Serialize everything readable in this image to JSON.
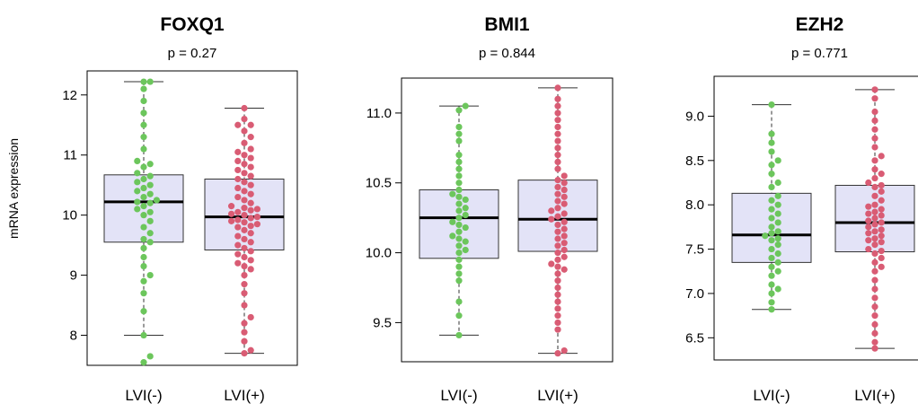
{
  "ylabel_text": "mRNA expression",
  "colors": {
    "box_fill": "#e3e3f7",
    "box_stroke": "#333333",
    "median": "#000000",
    "lvi_neg": "#6cc65c",
    "lvi_pos": "#d95c74"
  },
  "chart_data": [
    {
      "type": "box",
      "title": "FOXQ1",
      "subtitle": "p = 0.27",
      "ylabel": "mRNA expression",
      "ylim": [
        7.5,
        12.4
      ],
      "yticks": [
        8,
        9,
        10,
        11,
        12
      ],
      "categories": [
        "LVI(-)",
        "LVI(+)"
      ],
      "boxes": [
        {
          "name": "LVI(-)",
          "whisker_low": 8.0,
          "q1": 9.55,
          "median": 10.22,
          "q3": 10.67,
          "whisker_high": 12.22,
          "outliers": [
            7.65,
            7.55
          ]
        },
        {
          "name": "LVI(+)",
          "whisker_low": 7.7,
          "q1": 9.42,
          "median": 9.97,
          "q3": 10.6,
          "whisker_high": 11.78,
          "outliers": []
        }
      ],
      "points": [
        {
          "group": "LVI(-)",
          "values": [
            7.55,
            7.65,
            8.0,
            8.4,
            8.7,
            8.9,
            9.0,
            9.15,
            9.3,
            9.45,
            9.55,
            9.6,
            9.7,
            9.8,
            9.9,
            10.0,
            10.05,
            10.1,
            10.15,
            10.2,
            10.22,
            10.25,
            10.3,
            10.35,
            10.4,
            10.45,
            10.5,
            10.55,
            10.6,
            10.65,
            10.7,
            10.8,
            10.85,
            10.9,
            11.1,
            11.3,
            11.5,
            11.7,
            11.9,
            12.1,
            12.22,
            12.22
          ]
        },
        {
          "group": "LVI(+)",
          "values": [
            7.7,
            7.75,
            7.9,
            8.05,
            8.2,
            8.3,
            8.5,
            8.7,
            8.85,
            9.0,
            9.1,
            9.15,
            9.2,
            9.25,
            9.3,
            9.35,
            9.4,
            9.45,
            9.5,
            9.55,
            9.6,
            9.65,
            9.7,
            9.75,
            9.8,
            9.82,
            9.85,
            9.88,
            9.9,
            9.92,
            9.95,
            9.97,
            10.0,
            10.02,
            10.05,
            10.08,
            10.1,
            10.12,
            10.15,
            10.2,
            10.25,
            10.3,
            10.35,
            10.4,
            10.45,
            10.5,
            10.55,
            10.6,
            10.65,
            10.7,
            10.75,
            10.8,
            10.85,
            10.9,
            10.95,
            11.0,
            11.05,
            11.1,
            11.2,
            11.3,
            11.4,
            11.5,
            11.5,
            11.6,
            11.78
          ]
        }
      ]
    },
    {
      "type": "box",
      "title": "BMI1",
      "subtitle": "p = 0.844",
      "ylabel": "",
      "ylim": [
        9.22,
        11.25
      ],
      "yticks": [
        9.5,
        10.0,
        10.5,
        11.0
      ],
      "ytick_labels": [
        "9.5",
        "10.0",
        "10.5",
        "11.0"
      ],
      "categories": [
        "LVI(-)",
        "LVI(+)"
      ],
      "boxes": [
        {
          "name": "LVI(-)",
          "whisker_low": 9.41,
          "q1": 9.96,
          "median": 10.25,
          "q3": 10.45,
          "whisker_high": 11.05,
          "outliers": []
        },
        {
          "name": "LVI(+)",
          "whisker_low": 9.28,
          "q1": 10.01,
          "median": 10.24,
          "q3": 10.52,
          "whisker_high": 11.18,
          "outliers": []
        }
      ],
      "points": [
        {
          "group": "LVI(-)",
          "values": [
            9.41,
            9.55,
            9.65,
            9.8,
            9.85,
            9.9,
            9.95,
            10.0,
            10.02,
            10.05,
            10.08,
            10.1,
            10.12,
            10.15,
            10.18,
            10.2,
            10.22,
            10.25,
            10.27,
            10.3,
            10.32,
            10.35,
            10.38,
            10.4,
            10.42,
            10.45,
            10.5,
            10.55,
            10.6,
            10.65,
            10.7,
            10.8,
            10.85,
            10.9,
            11.02,
            11.05
          ]
        },
        {
          "group": "LVI(+)",
          "values": [
            9.28,
            9.3,
            9.45,
            9.5,
            9.55,
            9.6,
            9.65,
            9.7,
            9.75,
            9.8,
            9.85,
            9.88,
            9.9,
            9.92,
            9.95,
            9.97,
            10.0,
            10.02,
            10.05,
            10.07,
            10.1,
            10.12,
            10.15,
            10.17,
            10.2,
            10.22,
            10.24,
            10.26,
            10.28,
            10.3,
            10.32,
            10.35,
            10.37,
            10.4,
            10.42,
            10.45,
            10.47,
            10.5,
            10.52,
            10.55,
            10.6,
            10.65,
            10.7,
            10.75,
            10.8,
            10.85,
            10.9,
            10.95,
            11.0,
            11.05,
            11.1,
            11.18
          ]
        }
      ]
    },
    {
      "type": "box",
      "title": "EZH2",
      "subtitle": "p = 0.771",
      "ylabel": "",
      "ylim": [
        6.25,
        9.45
      ],
      "yticks": [
        6.5,
        7.0,
        7.5,
        8.0,
        8.5,
        9.0
      ],
      "ytick_labels": [
        "6.5",
        "7.0",
        "7.5",
        "8.0",
        "8.5",
        "9.0"
      ],
      "categories": [
        "LVI(-)",
        "LVI(+)"
      ],
      "boxes": [
        {
          "name": "LVI(-)",
          "whisker_low": 6.82,
          "q1": 7.35,
          "median": 7.66,
          "q3": 8.13,
          "whisker_high": 9.13,
          "outliers": []
        },
        {
          "name": "LVI(+)",
          "whisker_low": 6.38,
          "q1": 7.47,
          "median": 7.8,
          "q3": 8.22,
          "whisker_high": 9.3,
          "outliers": []
        }
      ],
      "points": [
        {
          "group": "LVI(-)",
          "values": [
            6.82,
            6.9,
            7.0,
            7.05,
            7.1,
            7.2,
            7.25,
            7.3,
            7.35,
            7.4,
            7.45,
            7.5,
            7.55,
            7.6,
            7.62,
            7.65,
            7.68,
            7.7,
            7.75,
            7.8,
            7.85,
            7.9,
            7.95,
            8.0,
            8.05,
            8.1,
            8.2,
            8.25,
            8.35,
            8.45,
            8.5,
            8.6,
            8.7,
            8.8,
            9.13
          ]
        },
        {
          "group": "LVI(+)",
          "values": [
            6.38,
            6.45,
            6.55,
            6.65,
            6.75,
            6.85,
            6.95,
            7.05,
            7.15,
            7.25,
            7.3,
            7.35,
            7.4,
            7.45,
            7.48,
            7.5,
            7.55,
            7.58,
            7.6,
            7.62,
            7.65,
            7.68,
            7.7,
            7.72,
            7.75,
            7.78,
            7.8,
            7.82,
            7.85,
            7.88,
            7.9,
            7.92,
            7.95,
            7.98,
            8.0,
            8.05,
            8.1,
            8.15,
            8.2,
            8.22,
            8.25,
            8.3,
            8.35,
            8.4,
            8.5,
            8.55,
            8.65,
            8.75,
            8.85,
            8.95,
            9.05,
            9.2,
            9.3
          ]
        }
      ]
    }
  ]
}
